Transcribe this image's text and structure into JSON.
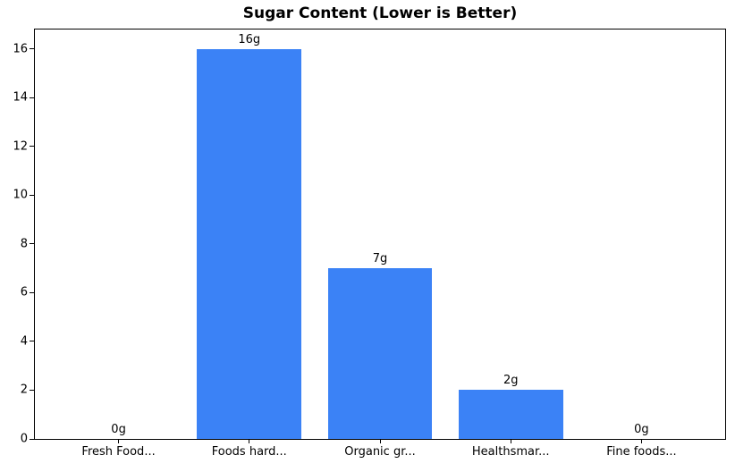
{
  "chart_data": {
    "type": "bar",
    "title": "Sugar Content (Lower is Better)",
    "categories": [
      "Fresh Food...",
      "Foods hard...",
      "Organic gr...",
      "Healthsmar...",
      "Fine foods..."
    ],
    "values": [
      0,
      16,
      7,
      2,
      0
    ],
    "bar_labels": [
      "0g",
      "16g",
      "7g",
      "2g",
      "0g"
    ],
    "yticks": [
      0,
      2,
      4,
      6,
      8,
      10,
      12,
      14,
      16
    ],
    "ylim": [
      0,
      16.8
    ],
    "xlim": [
      -0.64,
      4.64
    ],
    "bar_width_units": 0.8,
    "xlabel": "",
    "ylabel": "",
    "grid": false,
    "legend": null,
    "colors": {
      "bar": "#3b82f6",
      "text": "#000000",
      "spine": "#000000",
      "background": "#ffffff"
    }
  }
}
